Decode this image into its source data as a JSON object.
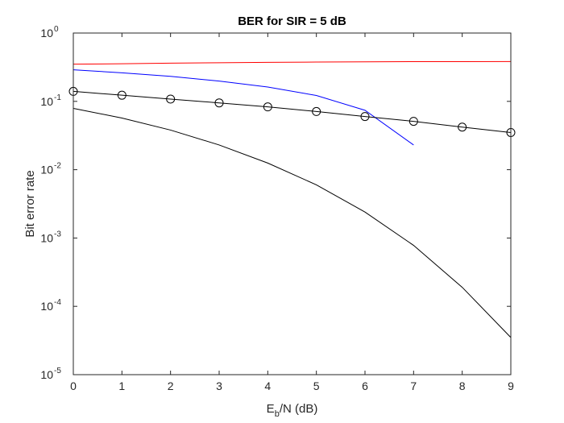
{
  "chart_data": {
    "type": "line",
    "title": "BER for SIR = 5 dB",
    "xlabel": {
      "main": "E",
      "sub": "b",
      "rest": "/N (dB)"
    },
    "ylabel": "Bit error rate",
    "xlim": [
      0,
      9
    ],
    "ylim": [
      1e-05,
      1
    ],
    "yscale": "log",
    "grid": false,
    "x_ticks": [
      "0",
      "1",
      "2",
      "3",
      "4",
      "5",
      "6",
      "7",
      "8",
      "9"
    ],
    "y_ticks": [
      {
        "value": 1,
        "base": "10",
        "exp": "0"
      },
      {
        "value": 0.1,
        "base": "10",
        "exp": "-1"
      },
      {
        "value": 0.01,
        "base": "10",
        "exp": "-2"
      },
      {
        "value": 0.001,
        "base": "10",
        "exp": "-3"
      },
      {
        "value": 0.0001,
        "base": "10",
        "exp": "-4"
      },
      {
        "value": 1e-05,
        "base": "10",
        "exp": "-5"
      }
    ],
    "series": [
      {
        "color": "#ff0000",
        "marker": "none",
        "x": [
          0,
          1,
          2,
          3,
          4,
          5,
          6,
          7,
          8,
          9
        ],
        "y": [
          0.35,
          0.355,
          0.362,
          0.368,
          0.373,
          0.376,
          0.379,
          0.381,
          0.382,
          0.383
        ]
      },
      {
        "color": "#0000ff",
        "marker": "none",
        "x": [
          0,
          1,
          2,
          3,
          4,
          5,
          6,
          7
        ],
        "y": [
          0.29,
          0.262,
          0.232,
          0.198,
          0.162,
          0.122,
          0.074,
          0.023
        ]
      },
      {
        "color": "#000000",
        "marker": "circle",
        "x": [
          0,
          1,
          2,
          3,
          4,
          5,
          6,
          7,
          8,
          9
        ],
        "y": [
          0.14,
          0.123,
          0.108,
          0.095,
          0.083,
          0.071,
          0.06,
          0.051,
          0.042,
          0.035
        ]
      },
      {
        "color": "#000000",
        "marker": "none",
        "x": [
          0,
          1,
          2,
          3,
          4,
          5,
          6,
          7,
          8,
          9
        ],
        "y": [
          0.079,
          0.057,
          0.038,
          0.023,
          0.0125,
          0.006,
          0.0024,
          0.00078,
          0.00019,
          3.5e-05
        ]
      }
    ]
  }
}
